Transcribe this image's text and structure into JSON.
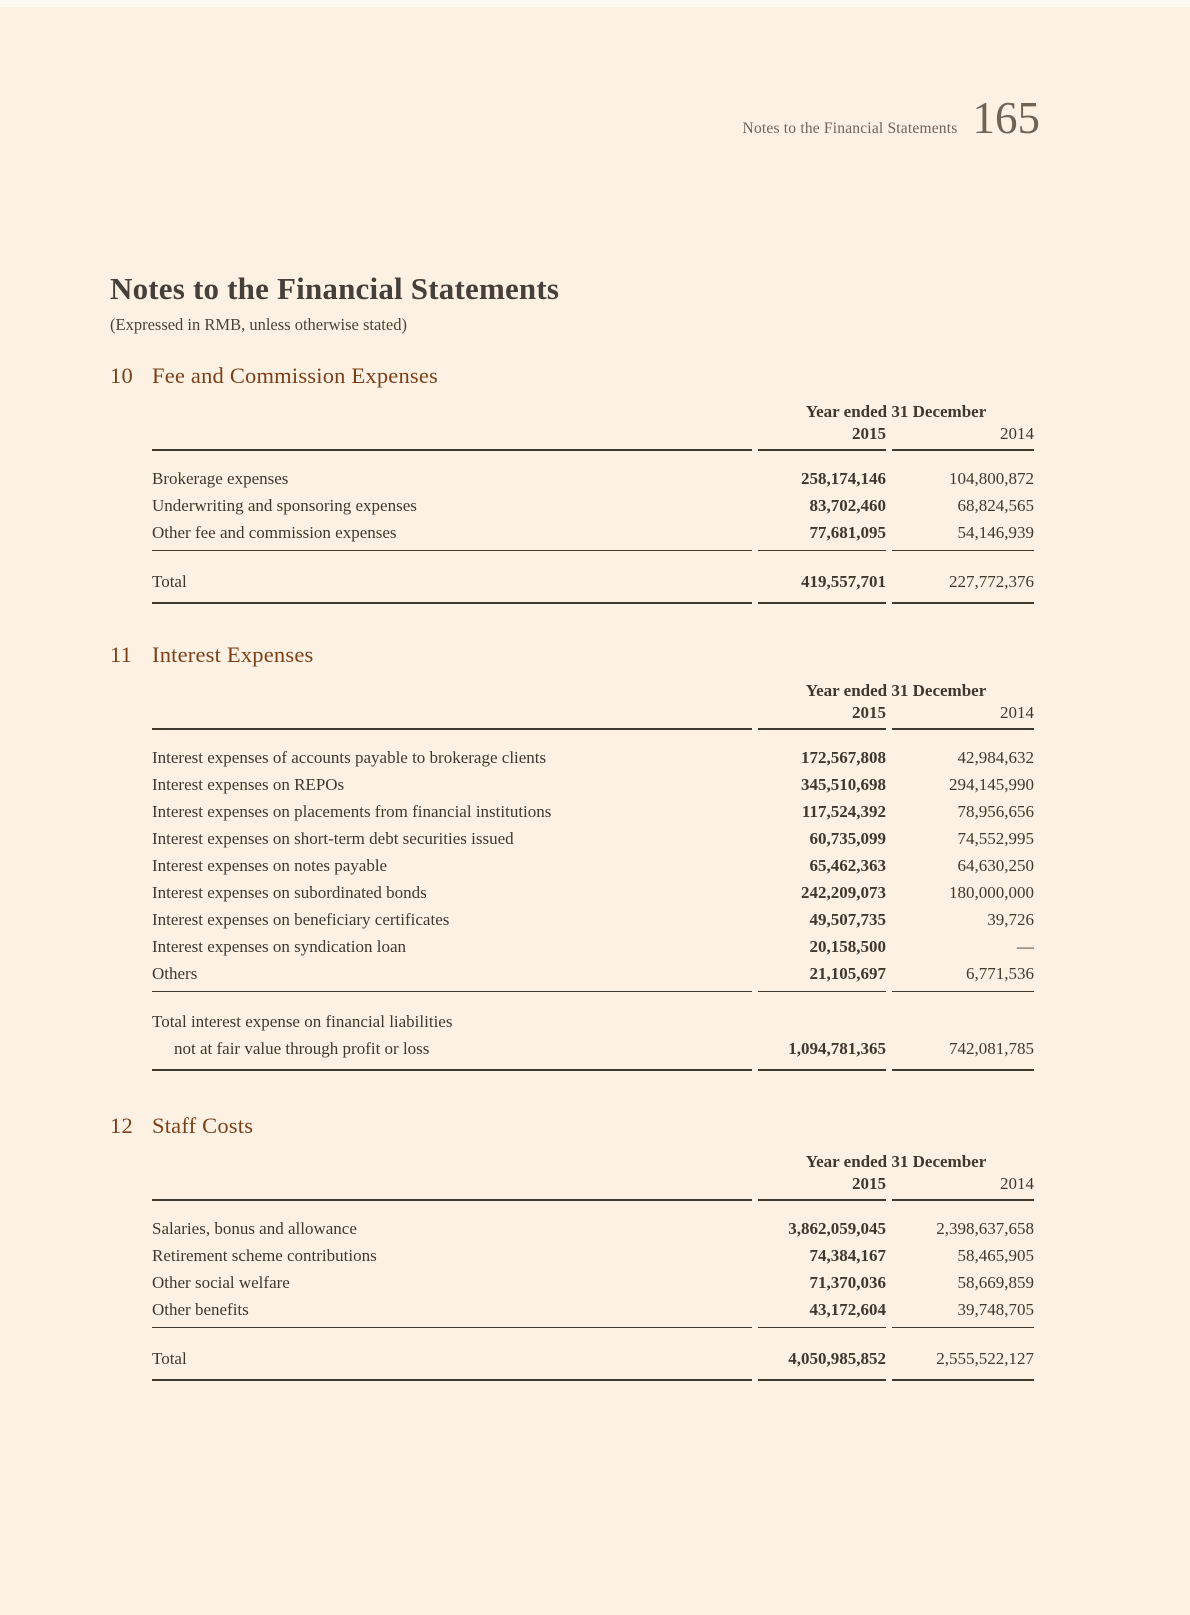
{
  "page": {
    "running_title": "Notes to the Financial Statements",
    "page_number": "165",
    "title": "Notes to the Financial Statements",
    "subtitle": "(Expressed in RMB, unless otherwise stated)"
  },
  "colors": {
    "background": "#fdf1e4",
    "text": "#3f382e",
    "section_heading": "#7c4018",
    "running_header": "#6e6557",
    "rule": "#3f382e"
  },
  "sections": [
    {
      "number": "10",
      "title": "Fee and Commission Expenses",
      "table": {
        "period_header": "Year ended 31 December",
        "col_headers": [
          "2015",
          "2014"
        ],
        "rows": [
          {
            "label": "Brokerage expenses",
            "v2015": "258,174,146",
            "v2014": "104,800,872"
          },
          {
            "label": "Underwriting and sponsoring expenses",
            "v2015": "83,702,460",
            "v2014": "68,824,565"
          },
          {
            "label": "Other fee and commission expenses",
            "v2015": "77,681,095",
            "v2014": "54,146,939"
          }
        ],
        "total": {
          "label_lines": [
            "Total"
          ],
          "v2015": "419,557,701",
          "v2014": "227,772,376"
        }
      }
    },
    {
      "number": "11",
      "title": "Interest Expenses",
      "table": {
        "period_header": "Year ended 31 December",
        "col_headers": [
          "2015",
          "2014"
        ],
        "rows": [
          {
            "label": "Interest expenses of accounts payable to brokerage clients",
            "v2015": "172,567,808",
            "v2014": "42,984,632"
          },
          {
            "label": "Interest expenses on REPOs",
            "v2015": "345,510,698",
            "v2014": "294,145,990"
          },
          {
            "label": "Interest expenses on placements from financial institutions",
            "v2015": "117,524,392",
            "v2014": "78,956,656"
          },
          {
            "label": "Interest expenses on short-term debt securities issued",
            "v2015": "60,735,099",
            "v2014": "74,552,995"
          },
          {
            "label": "Interest expenses on notes payable",
            "v2015": "65,462,363",
            "v2014": "64,630,250"
          },
          {
            "label": "Interest expenses on subordinated bonds",
            "v2015": "242,209,073",
            "v2014": "180,000,000"
          },
          {
            "label": "Interest expenses on beneficiary certificates",
            "v2015": "49,507,735",
            "v2014": "39,726"
          },
          {
            "label": "Interest expenses on syndication loan",
            "v2015": "20,158,500",
            "v2014": "—"
          },
          {
            "label": "Others",
            "v2015": "21,105,697",
            "v2014": "6,771,536"
          }
        ],
        "total": {
          "label_lines": [
            "Total interest expense on financial liabilities",
            "not at fair value through profit or loss"
          ],
          "v2015": "1,094,781,365",
          "v2014": "742,081,785"
        }
      }
    },
    {
      "number": "12",
      "title": "Staff Costs",
      "table": {
        "period_header": "Year ended 31 December",
        "col_headers": [
          "2015",
          "2014"
        ],
        "rows": [
          {
            "label": "Salaries, bonus and allowance",
            "v2015": "3,862,059,045",
            "v2014": "2,398,637,658"
          },
          {
            "label": "Retirement scheme contributions",
            "v2015": "74,384,167",
            "v2014": "58,465,905"
          },
          {
            "label": "Other social welfare",
            "v2015": "71,370,036",
            "v2014": "58,669,859"
          },
          {
            "label": "Other benefits",
            "v2015": "43,172,604",
            "v2014": "39,748,705"
          }
        ],
        "total": {
          "label_lines": [
            "Total"
          ],
          "v2015": "4,050,985,852",
          "v2014": "2,555,522,127"
        }
      }
    }
  ]
}
